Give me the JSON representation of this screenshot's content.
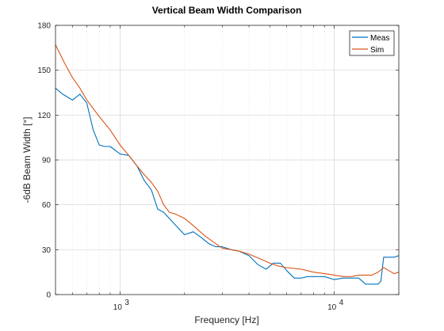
{
  "chart_data": {
    "type": "line",
    "title": "Vertical Beam Width Comparison",
    "xlabel": "Frequency [Hz]",
    "ylabel": "-6dB Beam Width [°]",
    "xscale": "log",
    "xlim": [
      500,
      20000
    ],
    "ylim": [
      0,
      180
    ],
    "yticks": [
      0,
      30,
      60,
      90,
      120,
      150,
      180
    ],
    "xtick_labels": [
      {
        "value": 1000,
        "base": "10",
        "exp": "3"
      },
      {
        "value": 10000,
        "base": "10",
        "exp": "4"
      }
    ],
    "grid": true,
    "legend_position": "top-right",
    "series": [
      {
        "name": "Meas",
        "color": "#0072bd",
        "x": [
          500,
          540,
          600,
          650,
          700,
          750,
          800,
          850,
          900,
          1000,
          1100,
          1200,
          1300,
          1400,
          1500,
          1600,
          1800,
          2000,
          2200,
          2400,
          2600,
          2800,
          3000,
          3300,
          3600,
          4000,
          4400,
          4800,
          5200,
          5600,
          6000,
          6500,
          7000,
          7500,
          8000,
          9000,
          10000,
          11000,
          12000,
          13000,
          14000,
          15000,
          16000,
          16500,
          17000,
          18000,
          19000,
          20000
        ],
        "y": [
          138,
          134,
          130,
          134,
          128,
          110,
          100,
          99,
          99,
          94,
          93,
          86,
          76,
          70,
          57,
          55,
          47,
          40,
          42,
          38,
          34,
          32,
          32,
          30,
          29,
          26,
          20,
          17,
          21,
          21,
          16,
          11,
          11,
          12,
          12,
          12,
          10,
          11,
          11,
          11,
          7,
          7,
          7,
          9,
          25,
          25,
          25,
          26
        ]
      },
      {
        "name": "Sim",
        "color": "#d95319",
        "x": [
          500,
          550,
          600,
          650,
          700,
          800,
          900,
          1000,
          1100,
          1200,
          1300,
          1400,
          1500,
          1600,
          1700,
          1800,
          2000,
          2200,
          2500,
          2800,
          3000,
          3300,
          3600,
          4000,
          4500,
          5000,
          5500,
          6000,
          7000,
          8000,
          9000,
          10000,
          11000,
          12000,
          13000,
          14000,
          15000,
          16000,
          17000,
          18000,
          19000,
          20000
        ],
        "y": [
          167,
          155,
          145,
          138,
          130,
          119,
          110,
          100,
          93,
          86,
          80,
          75,
          69,
          60,
          55,
          54,
          51,
          46,
          39,
          34,
          31,
          30,
          29,
          27,
          24,
          21,
          19,
          18,
          17,
          15,
          14,
          13,
          12,
          12,
          13,
          13,
          13,
          15,
          18,
          16,
          14,
          15
        ]
      }
    ]
  }
}
